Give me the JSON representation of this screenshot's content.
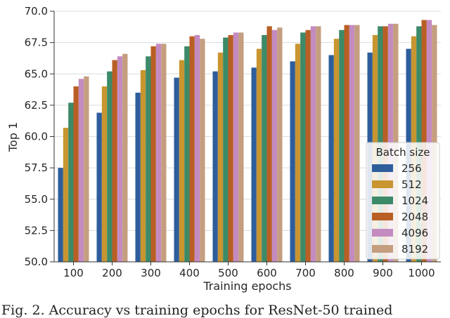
{
  "caption": "Fig. 2. Accuracy vs training epochs for ResNet-50 trained",
  "chart_data": {
    "type": "bar",
    "xlabel": "Training epochs",
    "ylabel": "Top 1",
    "ylim": [
      50.0,
      70.0
    ],
    "yticks": [
      "50.0",
      "52.5",
      "55.0",
      "57.5",
      "60.0",
      "62.5",
      "65.0",
      "67.5",
      "70.0"
    ],
    "categories": [
      "100",
      "200",
      "300",
      "400",
      "500",
      "600",
      "700",
      "800",
      "900",
      "1000"
    ],
    "grid": "horizontal",
    "legend_title": "Batch size",
    "legend_position": "right",
    "series": [
      {
        "name": "256",
        "color": "#2e5d9c",
        "values": [
          57.5,
          61.9,
          63.5,
          64.7,
          65.2,
          65.5,
          66.0,
          66.5,
          66.7,
          67.0
        ]
      },
      {
        "name": "512",
        "color": "#c89530",
        "values": [
          60.7,
          64.0,
          65.3,
          66.1,
          66.7,
          67.0,
          67.4,
          67.8,
          68.1,
          68.0
        ]
      },
      {
        "name": "1024",
        "color": "#3d8a68",
        "values": [
          62.7,
          65.2,
          66.4,
          67.2,
          67.9,
          68.1,
          68.3,
          68.5,
          68.8,
          68.8
        ]
      },
      {
        "name": "2048",
        "color": "#b95f25",
        "values": [
          64.0,
          66.1,
          67.2,
          68.0,
          68.1,
          68.8,
          68.5,
          68.9,
          68.8,
          69.3
        ]
      },
      {
        "name": "4096",
        "color": "#c48bc1",
        "values": [
          64.6,
          66.4,
          67.4,
          68.1,
          68.3,
          68.5,
          68.8,
          68.9,
          69.0,
          69.3
        ]
      },
      {
        "name": "8192",
        "color": "#c49e7f",
        "values": [
          64.8,
          66.6,
          67.4,
          67.8,
          68.3,
          68.7,
          68.8,
          68.9,
          69.0,
          68.9
        ]
      }
    ]
  }
}
